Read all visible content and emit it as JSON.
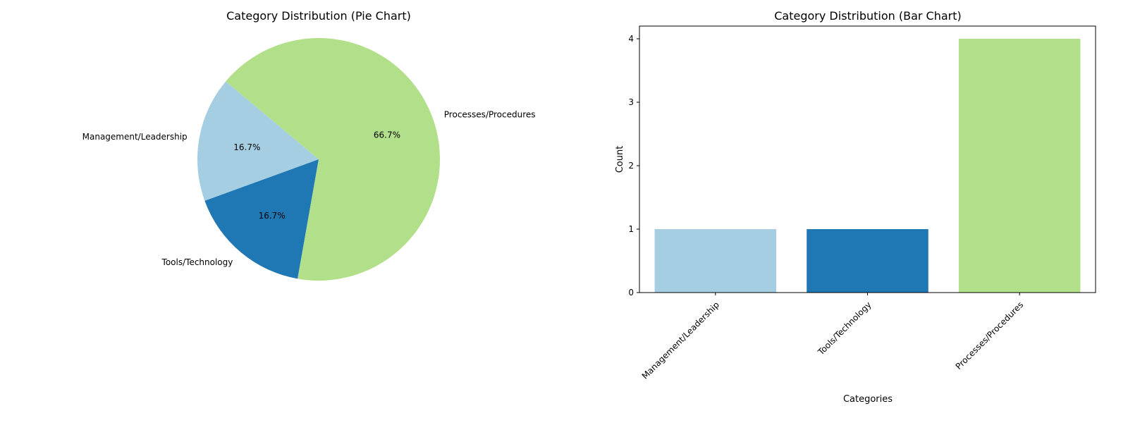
{
  "chart_data": [
    {
      "type": "pie",
      "title": "Category Distribution (Pie Chart)",
      "categories": [
        "Management/Leadership",
        "Tools/Technology",
        "Processes/Procedures"
      ],
      "values": [
        1,
        1,
        4
      ],
      "percent_labels": [
        "16.7%",
        "16.7%",
        "66.7%"
      ],
      "colors": [
        "#a6cee3",
        "#1f78b4",
        "#b2df8a"
      ],
      "start_angle_deg": 140,
      "direction": "counterclockwise"
    },
    {
      "type": "bar",
      "title": "Category Distribution (Bar Chart)",
      "categories": [
        "Management/Leadership",
        "Tools/Technology",
        "Processes/Procedures"
      ],
      "values": [
        1,
        1,
        4
      ],
      "colors": [
        "#a6cee3",
        "#1f78b4",
        "#b2df8a"
      ],
      "xlabel": "Categories",
      "ylabel": "Count",
      "ylim": [
        0,
        4.2
      ],
      "yticks": [
        "0",
        "1",
        "2",
        "3",
        "4"
      ],
      "xtick_rotation_deg": 45,
      "grid": false
    }
  ]
}
